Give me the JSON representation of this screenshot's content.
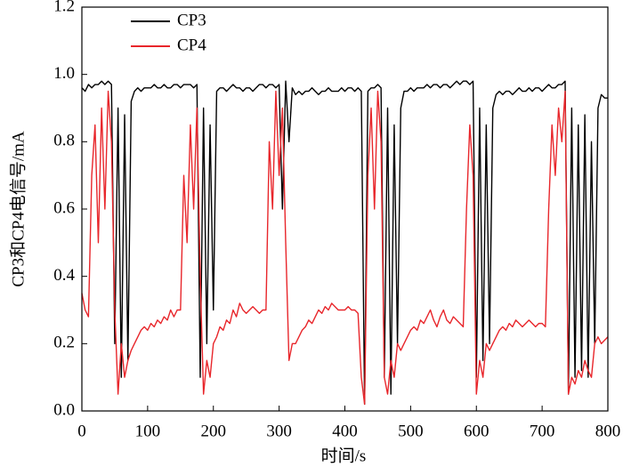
{
  "chart_data": {
    "type": "line",
    "xlabel": "时间/s",
    "ylabel": "CP3和CP4电信号/mA",
    "x": [
      0,
      5,
      10,
      15,
      20,
      25,
      30,
      35,
      40,
      45,
      50,
      55,
      60,
      65,
      70,
      75,
      80,
      85,
      90,
      95,
      100,
      105,
      110,
      115,
      120,
      125,
      130,
      135,
      140,
      145,
      150,
      155,
      160,
      165,
      170,
      175,
      180,
      185,
      190,
      195,
      200,
      205,
      210,
      215,
      220,
      225,
      230,
      235,
      240,
      245,
      250,
      255,
      260,
      265,
      270,
      275,
      280,
      285,
      290,
      295,
      300,
      305,
      310,
      315,
      320,
      325,
      330,
      335,
      340,
      345,
      350,
      355,
      360,
      365,
      370,
      375,
      380,
      385,
      390,
      395,
      400,
      405,
      410,
      415,
      420,
      425,
      430,
      435,
      440,
      445,
      450,
      455,
      460,
      465,
      470,
      475,
      480,
      485,
      490,
      495,
      500,
      505,
      510,
      515,
      520,
      525,
      530,
      535,
      540,
      545,
      550,
      555,
      560,
      565,
      570,
      575,
      580,
      585,
      590,
      595,
      600,
      605,
      610,
      615,
      620,
      625,
      630,
      635,
      640,
      645,
      650,
      655,
      660,
      665,
      670,
      675,
      680,
      685,
      690,
      695,
      700,
      705,
      710,
      715,
      720,
      725,
      730,
      735,
      740,
      745,
      750,
      755,
      760,
      765,
      770,
      775,
      780,
      785,
      790,
      795,
      800
    ],
    "series": [
      {
        "name": "CP3",
        "color": "#000000",
        "values": [
          0.96,
          0.95,
          0.97,
          0.96,
          0.97,
          0.97,
          0.98,
          0.97,
          0.98,
          0.97,
          0.2,
          0.9,
          0.1,
          0.88,
          0.15,
          0.92,
          0.95,
          0.96,
          0.95,
          0.96,
          0.96,
          0.96,
          0.97,
          0.96,
          0.96,
          0.97,
          0.96,
          0.96,
          0.97,
          0.97,
          0.96,
          0.97,
          0.97,
          0.97,
          0.96,
          0.97,
          0.1,
          0.9,
          0.2,
          0.85,
          0.3,
          0.95,
          0.96,
          0.96,
          0.95,
          0.96,
          0.97,
          0.96,
          0.96,
          0.95,
          0.96,
          0.96,
          0.95,
          0.96,
          0.97,
          0.97,
          0.96,
          0.97,
          0.97,
          0.96,
          0.97,
          0.6,
          0.98,
          0.8,
          0.96,
          0.94,
          0.95,
          0.94,
          0.95,
          0.95,
          0.96,
          0.95,
          0.94,
          0.95,
          0.95,
          0.96,
          0.95,
          0.95,
          0.95,
          0.96,
          0.95,
          0.96,
          0.96,
          0.95,
          0.96,
          0.95,
          0.02,
          0.95,
          0.96,
          0.96,
          0.97,
          0.96,
          0.1,
          0.9,
          0.05,
          0.85,
          0.2,
          0.9,
          0.95,
          0.95,
          0.96,
          0.95,
          0.96,
          0.96,
          0.96,
          0.97,
          0.96,
          0.97,
          0.97,
          0.96,
          0.97,
          0.97,
          0.96,
          0.97,
          0.98,
          0.97,
          0.98,
          0.98,
          0.97,
          0.98,
          0.1,
          0.9,
          0.15,
          0.85,
          0.2,
          0.9,
          0.94,
          0.95,
          0.94,
          0.95,
          0.95,
          0.94,
          0.95,
          0.96,
          0.95,
          0.95,
          0.96,
          0.95,
          0.96,
          0.96,
          0.95,
          0.96,
          0.97,
          0.96,
          0.96,
          0.97,
          0.97,
          0.98,
          0.05,
          0.9,
          0.1,
          0.85,
          0.12,
          0.88,
          0.1,
          0.8,
          0.2,
          0.9,
          0.94,
          0.93,
          0.93
        ]
      },
      {
        "name": "CP4",
        "color": "#e8262b",
        "values": [
          0.35,
          0.3,
          0.28,
          0.7,
          0.85,
          0.5,
          0.9,
          0.6,
          0.95,
          0.8,
          0.3,
          0.05,
          0.2,
          0.1,
          0.15,
          0.18,
          0.2,
          0.22,
          0.24,
          0.25,
          0.24,
          0.26,
          0.25,
          0.27,
          0.26,
          0.28,
          0.27,
          0.3,
          0.28,
          0.3,
          0.3,
          0.7,
          0.5,
          0.85,
          0.6,
          0.9,
          0.4,
          0.05,
          0.15,
          0.1,
          0.2,
          0.22,
          0.25,
          0.24,
          0.27,
          0.26,
          0.3,
          0.28,
          0.32,
          0.3,
          0.29,
          0.3,
          0.31,
          0.3,
          0.29,
          0.3,
          0.3,
          0.8,
          0.6,
          0.95,
          0.7,
          0.9,
          0.5,
          0.15,
          0.2,
          0.2,
          0.22,
          0.24,
          0.25,
          0.27,
          0.26,
          0.28,
          0.3,
          0.29,
          0.31,
          0.3,
          0.32,
          0.31,
          0.3,
          0.3,
          0.3,
          0.31,
          0.3,
          0.3,
          0.29,
          0.1,
          0.02,
          0.7,
          0.9,
          0.6,
          0.95,
          0.8,
          0.1,
          0.05,
          0.15,
          0.1,
          0.2,
          0.18,
          0.2,
          0.22,
          0.24,
          0.25,
          0.24,
          0.27,
          0.26,
          0.28,
          0.3,
          0.27,
          0.25,
          0.28,
          0.3,
          0.27,
          0.26,
          0.28,
          0.27,
          0.26,
          0.25,
          0.6,
          0.85,
          0.7,
          0.05,
          0.15,
          0.1,
          0.2,
          0.18,
          0.2,
          0.22,
          0.24,
          0.25,
          0.24,
          0.26,
          0.25,
          0.27,
          0.26,
          0.25,
          0.26,
          0.27,
          0.26,
          0.25,
          0.26,
          0.26,
          0.25,
          0.6,
          0.85,
          0.7,
          0.9,
          0.8,
          0.95,
          0.05,
          0.1,
          0.08,
          0.12,
          0.1,
          0.15,
          0.12,
          0.1,
          0.2,
          0.22,
          0.2,
          0.21,
          0.22
        ]
      }
    ],
    "xlim": [
      0,
      800
    ],
    "xticks": [
      0,
      100,
      200,
      300,
      400,
      500,
      600,
      700,
      800
    ],
    "ylim": [
      0,
      1.2
    ],
    "yticks": [
      {
        "value": 0,
        "label": "0.0"
      },
      0.2,
      0.4,
      0.6,
      0.8,
      {
        "value": 1,
        "label": "1.0"
      },
      1.2
    ],
    "legend": "upper left"
  }
}
